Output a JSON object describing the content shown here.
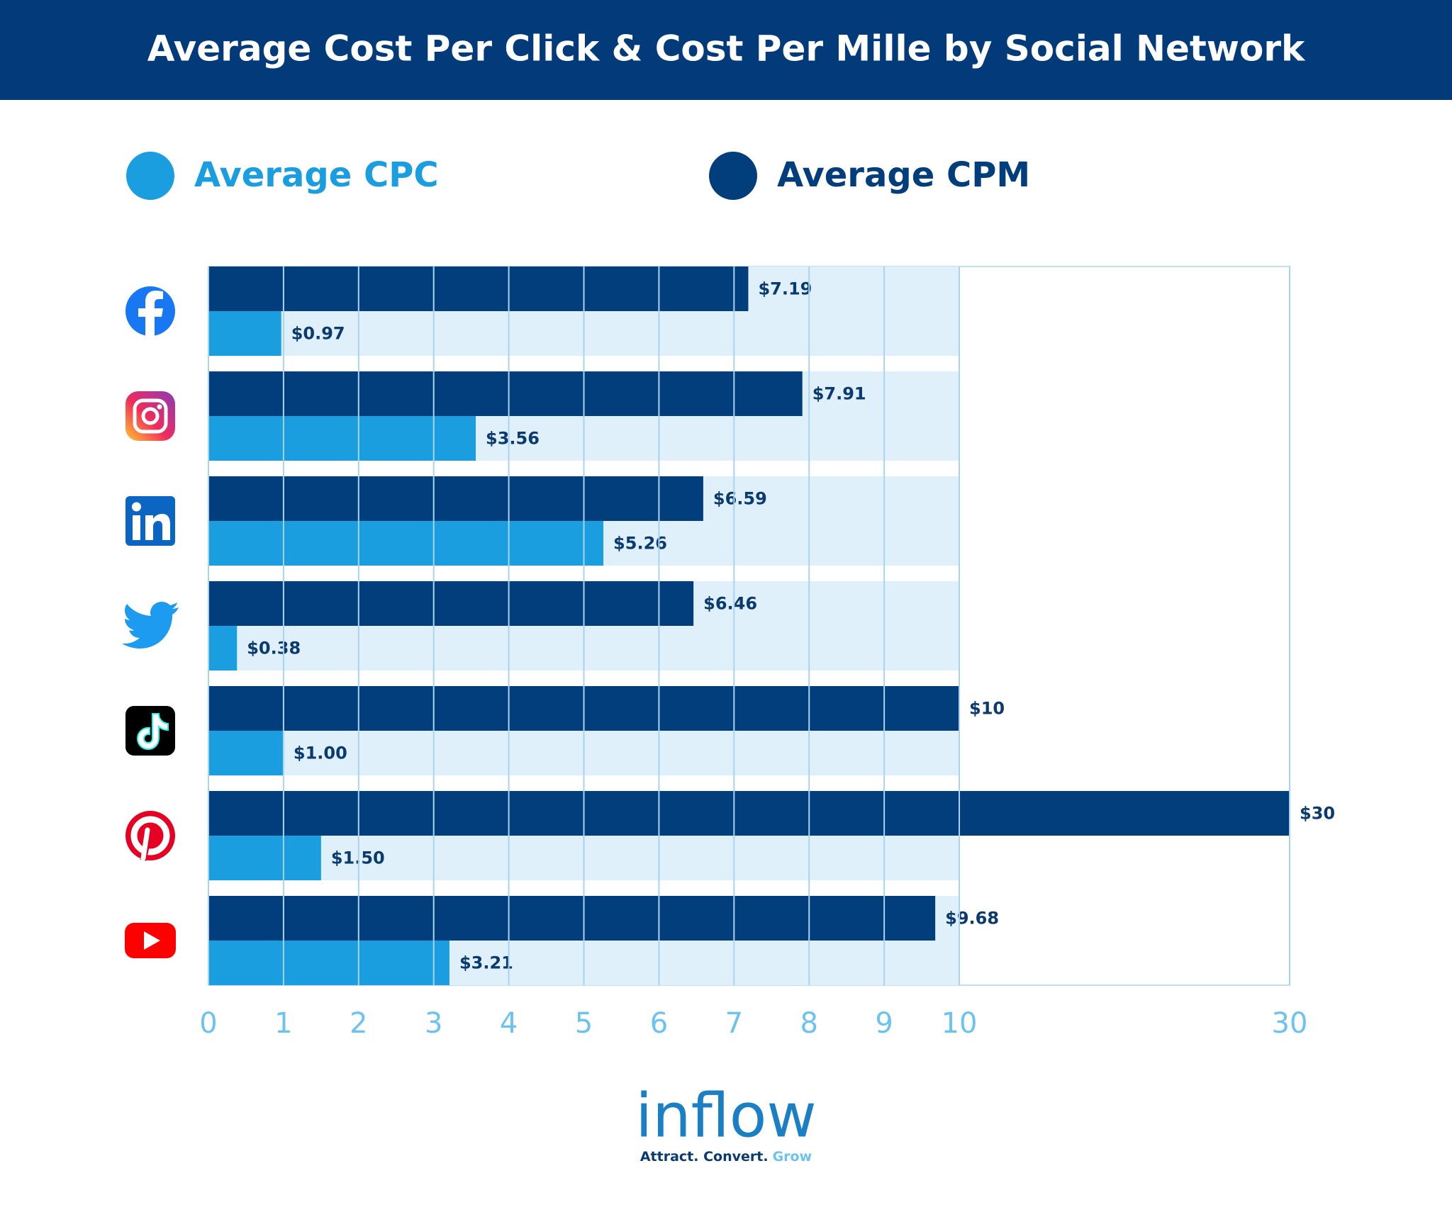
{
  "chart_data": {
    "type": "barh",
    "title": "Average Cost Per Click & Cost Per Mille by Social Network",
    "series": [
      {
        "name": "Average CPM",
        "color": "#033e7c",
        "values": [
          7.19,
          7.91,
          6.59,
          6.46,
          10,
          30,
          9.68
        ],
        "value_labels": [
          "$7.19",
          "$7.91",
          "$6.59",
          "$6.46",
          "$10",
          "$30",
          "$9.68"
        ]
      },
      {
        "name": "Average CPC",
        "color": "#1a9ee0",
        "values": [
          0.97,
          3.56,
          5.26,
          0.38,
          1.0,
          1.5,
          3.21
        ],
        "value_labels": [
          "$0.97",
          "$3.56",
          "$5.26",
          "$0.38",
          "$1.00",
          "$1.50",
          "$3.21"
        ]
      }
    ],
    "xlim": [
      0,
      30
    ],
    "xticks": [
      0,
      1,
      2,
      3,
      4,
      5,
      6,
      7,
      8,
      9,
      10,
      30
    ],
    "grid": true
  },
  "logo": {
    "name": "inflow",
    "tagline": [
      "Attract. Convert.",
      "Grow"
    ]
  }
}
